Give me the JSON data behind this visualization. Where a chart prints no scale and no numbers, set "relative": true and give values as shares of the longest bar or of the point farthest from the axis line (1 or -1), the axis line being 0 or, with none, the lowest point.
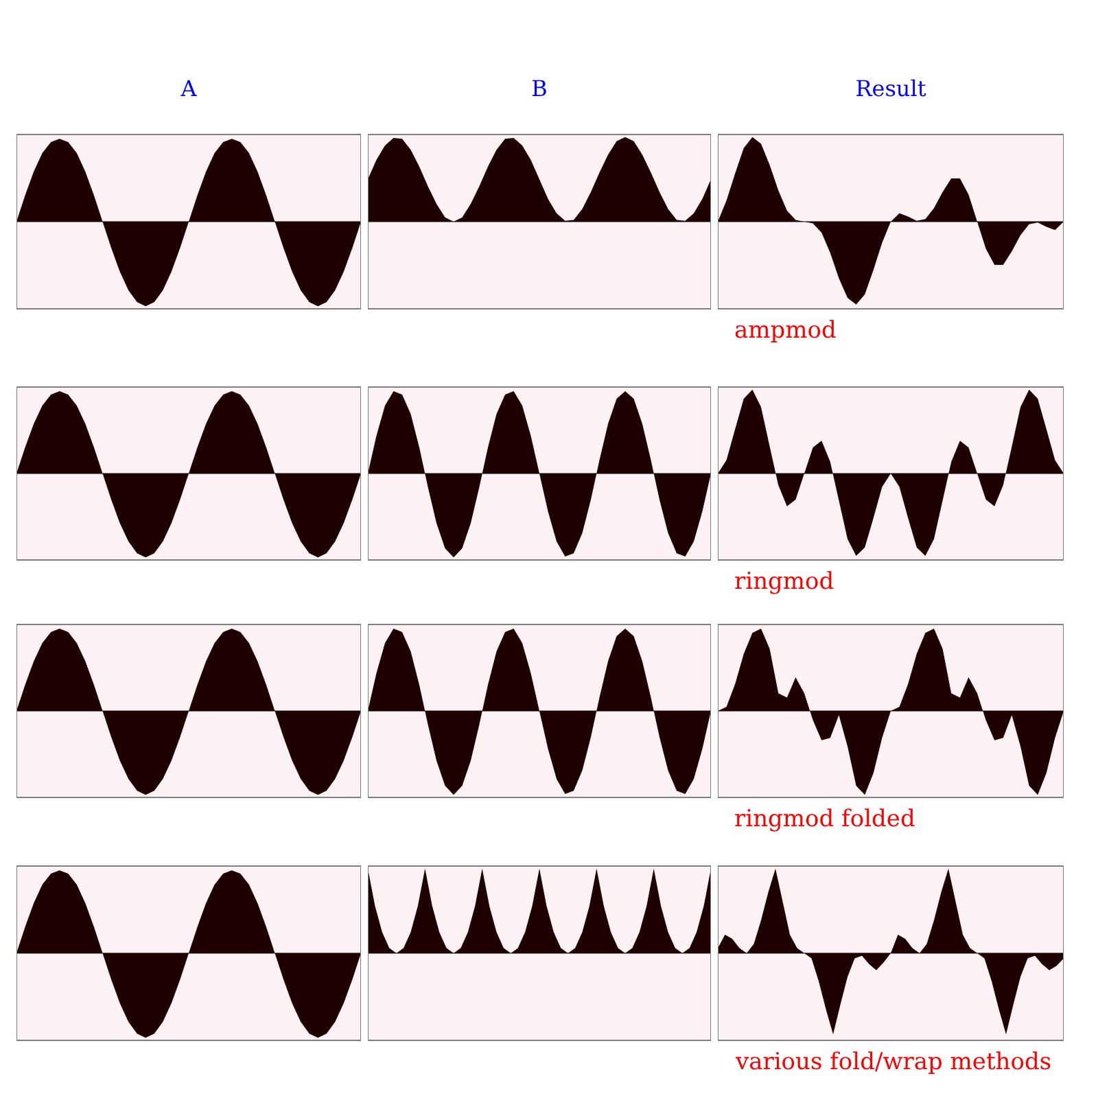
{
  "chart_data": [
    {
      "type": "area",
      "relative": true,
      "title": "A",
      "color": "#1e0000",
      "categories": [
        null,
        null,
        null,
        null,
        null,
        null,
        null,
        null,
        null,
        null,
        null,
        null,
        null,
        null,
        null,
        null,
        null,
        null,
        null,
        null,
        null,
        null,
        null,
        null,
        null,
        null,
        null,
        null,
        null,
        null,
        null,
        null,
        null,
        null,
        null,
        null,
        null,
        null,
        null,
        null,
        null
      ],
      "values": [
        0,
        0.31,
        0.59,
        0.81,
        0.94,
        0.98,
        0.94,
        0.81,
        0.59,
        0.31,
        0,
        -0.31,
        -0.59,
        -0.81,
        -0.95,
        -1,
        -0.95,
        -0.81,
        -0.59,
        -0.31,
        0,
        0.31,
        0.59,
        0.81,
        0.94,
        0.98,
        0.94,
        0.81,
        0.59,
        0.31,
        0,
        -0.31,
        -0.59,
        -0.81,
        -0.95,
        -1,
        -0.95,
        -0.81,
        -0.59,
        -0.31,
        0
      ]
    },
    {
      "type": "area",
      "relative": true,
      "title": "B",
      "color": "#1e0000",
      "categories": [
        null,
        null,
        null,
        null,
        null,
        null,
        null,
        null,
        null,
        null,
        null,
        null,
        null,
        null,
        null,
        null,
        null,
        null,
        null,
        null,
        null,
        null,
        null,
        null,
        null,
        null,
        null,
        null,
        null,
        null,
        null,
        null,
        null,
        null,
        null,
        null,
        null,
        null,
        null,
        null,
        null
      ],
      "values": [
        0.5,
        0.73,
        0.9,
        0.99,
        0.98,
        0.85,
        0.65,
        0.42,
        0.21,
        0.05,
        0,
        0.05,
        0.21,
        0.42,
        0.65,
        0.85,
        0.98,
        0.99,
        0.9,
        0.73,
        0.5,
        0.27,
        0.1,
        0.01,
        0.02,
        0.15,
        0.35,
        0.58,
        0.79,
        0.95,
        1,
        0.95,
        0.79,
        0.58,
        0.35,
        0.15,
        0.02,
        0.01,
        0.1,
        0.27,
        0.5
      ]
    },
    {
      "type": "area",
      "relative": true,
      "title": "Result",
      "annotations": [
        "ampmod"
      ],
      "color": "#1e0000",
      "categories": [
        null,
        null,
        null,
        null,
        null,
        null,
        null,
        null,
        null,
        null,
        null,
        null,
        null,
        null,
        null,
        null,
        null,
        null,
        null,
        null,
        null,
        null,
        null,
        null,
        null,
        null,
        null,
        null,
        null,
        null,
        null,
        null,
        null,
        null,
        null,
        null,
        null,
        null,
        null,
        null,
        null
      ],
      "values": [
        0,
        0.25,
        0.57,
        0.87,
        1,
        0.92,
        0.67,
        0.37,
        0.13,
        0.02,
        0,
        -0.02,
        -0.13,
        -0.37,
        -0.67,
        -0.9,
        -0.98,
        -0.86,
        -0.57,
        -0.25,
        0,
        0.1,
        0.06,
        0.01,
        0.03,
        0.16,
        0.35,
        0.51,
        0.51,
        0.32,
        0,
        -0.32,
        -0.51,
        -0.51,
        -0.35,
        -0.16,
        -0.03,
        -0.01,
        -0.06,
        -0.1,
        0
      ]
    },
    {
      "type": "area",
      "relative": true,
      "color": "#1e0000",
      "categories": [
        null,
        null,
        null,
        null,
        null,
        null,
        null,
        null,
        null,
        null,
        null,
        null,
        null,
        null,
        null,
        null,
        null,
        null,
        null,
        null,
        null,
        null,
        null,
        null,
        null,
        null,
        null,
        null,
        null,
        null,
        null,
        null,
        null,
        null,
        null,
        null,
        null,
        null,
        null,
        null,
        null
      ],
      "values": [
        0,
        0.31,
        0.59,
        0.81,
        0.94,
        0.98,
        0.94,
        0.81,
        0.59,
        0.31,
        0,
        -0.31,
        -0.59,
        -0.81,
        -0.95,
        -1,
        -0.95,
        -0.81,
        -0.59,
        -0.31,
        0,
        0.31,
        0.59,
        0.81,
        0.94,
        0.98,
        0.94,
        0.81,
        0.59,
        0.31,
        0,
        -0.31,
        -0.59,
        -0.81,
        -0.95,
        -1,
        -0.95,
        -0.81,
        -0.59,
        -0.31,
        0
      ]
    },
    {
      "type": "area",
      "relative": true,
      "color": "#1e0000",
      "categories": [
        null,
        null,
        null,
        null,
        null,
        null,
        null,
        null,
        null,
        null,
        null,
        null,
        null,
        null,
        null,
        null,
        null,
        null,
        null,
        null,
        null,
        null,
        null,
        null,
        null,
        null,
        null,
        null,
        null,
        null,
        null,
        null,
        null,
        null,
        null,
        null,
        null,
        null,
        null,
        null,
        null
      ],
      "values": [
        0,
        0.45,
        0.81,
        0.98,
        0.94,
        0.71,
        0.31,
        -0.16,
        -0.59,
        -0.89,
        -1,
        -0.89,
        -0.59,
        -0.16,
        0.31,
        0.71,
        0.94,
        0.98,
        0.81,
        0.45,
        0,
        -0.45,
        -0.81,
        -0.99,
        -0.95,
        -0.71,
        -0.31,
        0.16,
        0.59,
        0.89,
        0.98,
        0.89,
        0.59,
        0.16,
        -0.31,
        -0.71,
        -0.95,
        -0.99,
        -0.81,
        -0.45,
        0
      ]
    },
    {
      "type": "area",
      "relative": true,
      "annotations": [
        "ringmod"
      ],
      "color": "#1e0000",
      "categories": [
        null,
        null,
        null,
        null,
        null,
        null,
        null,
        null,
        null,
        null,
        null,
        null,
        null,
        null,
        null,
        null,
        null,
        null,
        null,
        null,
        null,
        null,
        null,
        null,
        null,
        null,
        null,
        null,
        null,
        null,
        null,
        null,
        null,
        null,
        null,
        null,
        null,
        null,
        null,
        null,
        null
      ],
      "values": [
        0,
        0.16,
        0.53,
        0.89,
        1,
        0.79,
        0.32,
        -0.14,
        -0.39,
        -0.31,
        0,
        0.31,
        0.39,
        0.14,
        -0.32,
        -0.78,
        -0.98,
        -0.88,
        -0.53,
        -0.16,
        0,
        -0.16,
        -0.53,
        -0.88,
        -0.98,
        -0.78,
        -0.32,
        0.14,
        0.39,
        0.31,
        0,
        -0.31,
        -0.39,
        -0.14,
        0.32,
        0.79,
        1,
        0.89,
        0.53,
        0.16,
        0
      ]
    },
    {
      "type": "area",
      "relative": true,
      "color": "#1e0000",
      "categories": [
        null,
        null,
        null,
        null,
        null,
        null,
        null,
        null,
        null,
        null,
        null,
        null,
        null,
        null,
        null,
        null,
        null,
        null,
        null,
        null,
        null,
        null,
        null,
        null,
        null,
        null,
        null,
        null,
        null,
        null,
        null,
        null,
        null,
        null,
        null,
        null,
        null,
        null,
        null,
        null,
        null
      ],
      "values": [
        0,
        0.31,
        0.59,
        0.81,
        0.94,
        0.98,
        0.94,
        0.81,
        0.59,
        0.31,
        0,
        -0.31,
        -0.59,
        -0.81,
        -0.95,
        -1,
        -0.95,
        -0.81,
        -0.59,
        -0.31,
        0,
        0.31,
        0.59,
        0.81,
        0.94,
        0.98,
        0.94,
        0.81,
        0.59,
        0.31,
        0,
        -0.31,
        -0.59,
        -0.81,
        -0.95,
        -1,
        -0.95,
        -0.81,
        -0.59,
        -0.31,
        0
      ]
    },
    {
      "type": "area",
      "relative": true,
      "color": "#1e0000",
      "categories": [
        null,
        null,
        null,
        null,
        null,
        null,
        null,
        null,
        null,
        null,
        null,
        null,
        null,
        null,
        null,
        null,
        null,
        null,
        null,
        null,
        null,
        null,
        null,
        null,
        null,
        null,
        null,
        null,
        null,
        null,
        null,
        null,
        null,
        null,
        null,
        null,
        null,
        null,
        null,
        null,
        null
      ],
      "values": [
        0,
        0.45,
        0.81,
        0.98,
        0.94,
        0.71,
        0.31,
        -0.16,
        -0.59,
        -0.89,
        -1,
        -0.89,
        -0.59,
        -0.16,
        0.31,
        0.71,
        0.94,
        0.98,
        0.81,
        0.45,
        0,
        -0.45,
        -0.81,
        -0.99,
        -0.95,
        -0.71,
        -0.31,
        0.16,
        0.59,
        0.89,
        0.98,
        0.89,
        0.59,
        0.16,
        -0.31,
        -0.71,
        -0.95,
        -0.99,
        -0.81,
        -0.45,
        0
      ]
    },
    {
      "type": "area",
      "relative": true,
      "annotations": [
        "ringmod folded"
      ],
      "color": "#1e0000",
      "categories": [
        null,
        null,
        null,
        null,
        null,
        null,
        null,
        null,
        null,
        null,
        null,
        null,
        null,
        null,
        null,
        null,
        null,
        null,
        null,
        null,
        null,
        null,
        null,
        null,
        null,
        null,
        null,
        null,
        null,
        null,
        null,
        null,
        null,
        null,
        null,
        null,
        null,
        null,
        null,
        null,
        null
      ],
      "values": [
        0,
        0.05,
        0.32,
        0.68,
        0.93,
        0.98,
        0.74,
        0.21,
        0.16,
        0.4,
        0.21,
        -0.11,
        -0.35,
        -0.32,
        -0.05,
        -0.42,
        -0.89,
        -1,
        -0.74,
        -0.32,
        0,
        0.05,
        0.32,
        0.68,
        0.93,
        0.98,
        0.74,
        0.21,
        0.16,
        0.4,
        0.21,
        -0.11,
        -0.35,
        -0.32,
        -0.05,
        -0.42,
        -0.89,
        -1,
        -0.74,
        -0.32,
        0
      ]
    },
    {
      "type": "area",
      "relative": true,
      "color": "#1e0000",
      "categories": [
        null,
        null,
        null,
        null,
        null,
        null,
        null,
        null,
        null,
        null,
        null,
        null,
        null,
        null,
        null,
        null,
        null,
        null,
        null,
        null,
        null,
        null,
        null,
        null,
        null,
        null,
        null,
        null,
        null,
        null,
        null,
        null,
        null,
        null,
        null,
        null,
        null,
        null,
        null,
        null,
        null
      ],
      "values": [
        0,
        0.31,
        0.59,
        0.81,
        0.94,
        0.98,
        0.94,
        0.81,
        0.59,
        0.31,
        0,
        -0.31,
        -0.59,
        -0.81,
        -0.95,
        -1,
        -0.95,
        -0.81,
        -0.59,
        -0.31,
        0,
        0.31,
        0.59,
        0.81,
        0.94,
        0.98,
        0.94,
        0.81,
        0.59,
        0.31,
        0,
        -0.31,
        -0.59,
        -0.81,
        -0.95,
        -1,
        -0.95,
        -0.81,
        -0.59,
        -0.31,
        0
      ]
    },
    {
      "type": "area",
      "relative": true,
      "color": "#1e0000",
      "categories": [
        null,
        null,
        null,
        null,
        null,
        null,
        null,
        null,
        null,
        null,
        null,
        null,
        null,
        null,
        null,
        null,
        null,
        null,
        null,
        null,
        null,
        null,
        null,
        null,
        null,
        null,
        null,
        null,
        null,
        null,
        null,
        null,
        null,
        null,
        null,
        null,
        null,
        null,
        null,
        null,
        null,
        null,
        null,
        null,
        null,
        null,
        null,
        null,
        null
      ],
      "values": [
        1,
        0.56,
        0.25,
        0.06,
        0,
        0.06,
        0.25,
        0.56,
        1,
        0.56,
        0.25,
        0.06,
        0,
        0.06,
        0.25,
        0.56,
        1,
        0.56,
        0.25,
        0.06,
        0,
        0.06,
        0.25,
        0.56,
        1,
        0.56,
        0.25,
        0.06,
        0,
        0.06,
        0.25,
        0.56,
        1,
        0.56,
        0.25,
        0.06,
        0,
        0.06,
        0.25,
        0.56,
        1,
        0.56,
        0.25,
        0.06,
        0,
        0.06,
        0.25,
        0.56,
        1
      ]
    },
    {
      "type": "area",
      "relative": true,
      "annotations": [
        "various fold/wrap methods"
      ],
      "color": "#1e0000",
      "categories": [
        null,
        null,
        null,
        null,
        null,
        null,
        null,
        null,
        null,
        null,
        null,
        null,
        null,
        null,
        null,
        null,
        null,
        null,
        null,
        null,
        null,
        null,
        null,
        null,
        null,
        null,
        null,
        null,
        null,
        null,
        null,
        null,
        null,
        null,
        null,
        null,
        null,
        null,
        null,
        null,
        null,
        null,
        null,
        null,
        null,
        null,
        null,
        null,
        null
      ],
      "values": [
        0.06,
        0.22,
        0.17,
        0.06,
        0,
        0.11,
        0.39,
        0.72,
        1,
        0.61,
        0.22,
        0.06,
        0,
        -0.06,
        -0.33,
        -0.66,
        -0.96,
        -0.61,
        -0.28,
        -0.06,
        -0.03,
        -0.13,
        -0.2,
        -0.11,
        0,
        0.22,
        0.17,
        0.06,
        0,
        0.11,
        0.39,
        0.72,
        1,
        0.61,
        0.22,
        0.06,
        0,
        -0.06,
        -0.33,
        -0.66,
        -0.96,
        -0.61,
        -0.28,
        -0.06,
        -0.03,
        -0.13,
        -0.2,
        -0.15,
        -0.06
      ]
    }
  ]
}
